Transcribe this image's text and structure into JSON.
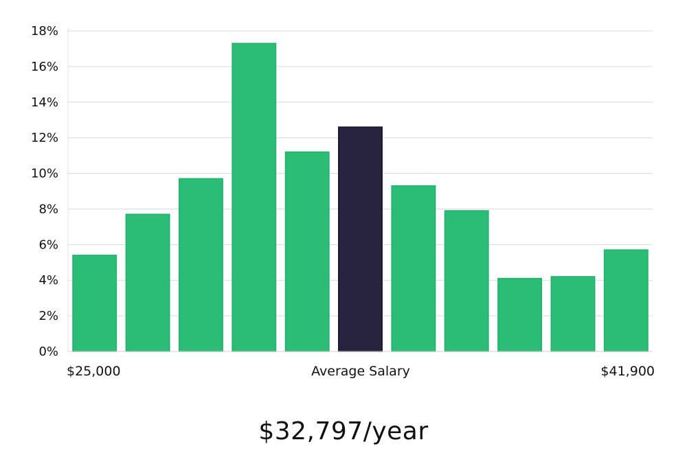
{
  "chart_data": {
    "type": "bar",
    "values": [
      5.4,
      7.7,
      9.7,
      17.3,
      11.2,
      12.6,
      9.3,
      7.9,
      4.1,
      4.2,
      5.7
    ],
    "highlight_index": 5,
    "ylim": [
      0,
      18
    ],
    "yticks": [
      "0%",
      "2%",
      "4%",
      "6%",
      "8%",
      "10%",
      "12%",
      "14%",
      "16%",
      "18%"
    ],
    "grid": true,
    "x_labels": {
      "left": "$25,000",
      "center": "Average Salary",
      "right": "$41,900"
    },
    "colors": {
      "bar": "#2bbd76",
      "highlight": "#28233f",
      "grid": "#d9d9d9"
    }
  },
  "summary": {
    "salary": "$32,797/year"
  }
}
